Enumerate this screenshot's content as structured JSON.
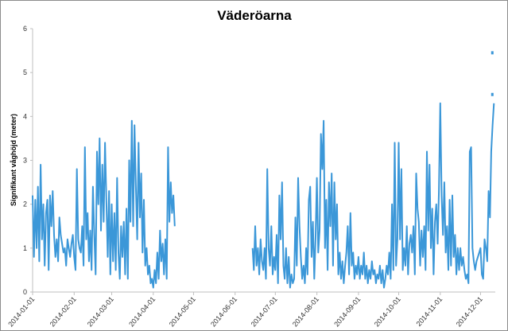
{
  "chart_data": {
    "type": "line",
    "title": "Väderöarna",
    "xlabel": "",
    "ylabel": "Signifikant våghöjd (meter)",
    "ylim": [
      0,
      6
    ],
    "yticks": [
      "0",
      "1",
      "2",
      "3",
      "4",
      "5",
      "6"
    ],
    "xlim": [
      "2014-01-01",
      "2014-12-12"
    ],
    "xticks": [
      "2014-01-01",
      "2014-02-01",
      "2014-03-01",
      "2014-04-01",
      "2014-05-01",
      "2014-06-01",
      "2014-07-01",
      "2014-08-01",
      "2014-09-01",
      "2014-10-01",
      "2014-11-01",
      "2014-12-01"
    ],
    "grid": false,
    "legend": "none",
    "color": "#3b97d8",
    "series": [
      {
        "name": "Signifikant våghöjd",
        "start": "2014-01-01",
        "step_days": 1,
        "values": [
          2.2,
          0.8,
          2.1,
          1.0,
          2.4,
          0.7,
          2.9,
          1.2,
          2.0,
          0.6,
          1.8,
          2.1,
          0.5,
          2.2,
          1.5,
          2.3,
          1.3,
          0.8,
          1.2,
          0.7,
          1.7,
          1.3,
          1.1,
          0.9,
          1.0,
          0.6,
          1.2,
          1.0,
          0.8,
          1.1,
          1.3,
          0.8,
          0.5,
          2.8,
          1.2,
          1.0,
          0.9,
          1.5,
          0.6,
          3.3,
          1.2,
          1.8,
          0.7,
          1.4,
          0.5,
          2.4,
          1.3,
          0.4,
          3.2,
          2.0,
          3.5,
          1.4,
          2.9,
          1.6,
          3.4,
          2.1,
          0.8,
          2.3,
          0.4,
          2.0,
          0.7,
          1.8,
          0.5,
          2.6,
          0.9,
          0.3,
          1.5,
          0.8,
          1.6,
          0.4,
          1.9,
          0.3,
          3.0,
          1.6,
          3.9,
          1.5,
          3.8,
          2.4,
          1.2,
          3.4,
          1.7,
          2.7,
          0.9,
          2.1,
          0.6,
          1.0,
          0.4,
          0.6,
          0.2,
          0.3,
          0.1,
          0.5,
          0.2,
          0.9,
          0.3,
          1.4,
          0.7,
          1.1,
          0.4,
          1.2,
          0.3,
          3.3,
          1.6,
          2.5,
          1.8,
          2.2,
          1.5
        ]
      },
      {
        "name": "Signifikant våghöjd",
        "start": "2014-06-14",
        "step_days": 1,
        "values": [
          1.0,
          0.5,
          1.5,
          0.6,
          1.0,
          0.4,
          1.2,
          0.7,
          0.5,
          1.0,
          0.3,
          2.8,
          1.0,
          0.6,
          1.5,
          0.4,
          0.8,
          0.5,
          1.3,
          0.2,
          2.2,
          1.2,
          2.5,
          0.6,
          0.3,
          1.0,
          0.2,
          0.8,
          0.1,
          0.4,
          0.2,
          0.3,
          1.7,
          0.6,
          2.6,
          1.5,
          0.8,
          0.3,
          0.6,
          0.2,
          1.0,
          0.4,
          2.1,
          2.4,
          0.8,
          1.6,
          0.3,
          1.2,
          2.6,
          0.9,
          1.4,
          3.6,
          2.8,
          3.9,
          1.0,
          2.1,
          0.5,
          2.5,
          1.5,
          2.7,
          0.6,
          2.5,
          1.2,
          2.0,
          0.4,
          0.9,
          0.3,
          0.7,
          0.2,
          0.6,
          0.9,
          1.5,
          0.4,
          1.8,
          0.6,
          0.9,
          0.3,
          0.6,
          0.4,
          0.8,
          0.3,
          0.6,
          0.4,
          0.9,
          0.3,
          0.6,
          0.2,
          0.5,
          0.3,
          0.7,
          0.4,
          0.5,
          0.2,
          0.4,
          0.3,
          0.6,
          0.2,
          0.5,
          0.1,
          0.3,
          0.6,
          0.4,
          0.9,
          0.3,
          2.0,
          0.5,
          3.4,
          0.6,
          1.2,
          3.4,
          1.2,
          2.8,
          0.5,
          1.0,
          0.6,
          1.5,
          0.4,
          1.1,
          1.3,
          0.9,
          1.5,
          0.4,
          2.7,
          1.9,
          1.6,
          0.6,
          1.4,
          0.8,
          1.5,
          0.5,
          3.2,
          1.4,
          2.9,
          1.0,
          1.9,
          0.4,
          1.6,
          2.0,
          1.1,
          2.3,
          4.3,
          2.2,
          1.3,
          2.5,
          0.9,
          1.5,
          0.5,
          2.1,
          0.6,
          2.2,
          0.8,
          1.3,
          0.4,
          1.0,
          0.5,
          1.0,
          0.6,
          0.8,
          0.5,
          0.3,
          0.4,
          0.2,
          3.2,
          3.3,
          1.0,
          0.7,
          0.5,
          0.7,
          0.8,
          0.9,
          1.0,
          0.4,
          0.3,
          1.2,
          1.0,
          0.7,
          2.3,
          1.7,
          3.2,
          3.8,
          4.3
        ]
      }
    ],
    "isolated_points": [
      {
        "date": "2014-12-09",
        "y": 5.45
      },
      {
        "date": "2014-12-09",
        "y": 4.5
      }
    ]
  }
}
